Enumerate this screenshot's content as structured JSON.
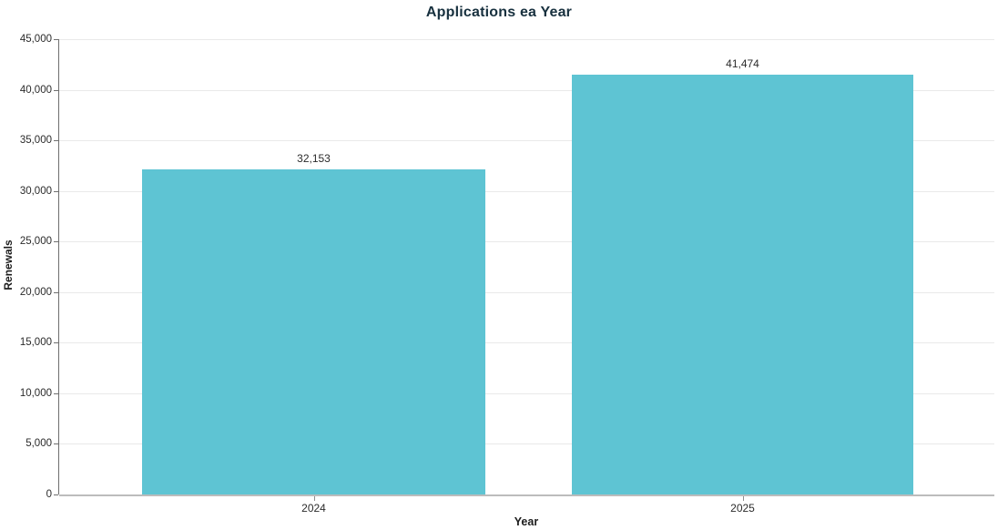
{
  "chart_data": {
    "type": "bar",
    "title": "Applications ea Year",
    "xlabel": "Year",
    "ylabel": "Renewals",
    "categories": [
      "2024",
      "2025"
    ],
    "values": [
      32153,
      41474
    ],
    "value_labels": [
      "32,153",
      "41,474"
    ],
    "ylim": [
      0,
      45000
    ],
    "ytick_values": [
      0,
      5000,
      10000,
      15000,
      20000,
      25000,
      30000,
      35000,
      40000,
      45000
    ],
    "ytick_labels": [
      "0",
      "5,000",
      "10,000",
      "15,000",
      "20,000",
      "25,000",
      "30,000",
      "35,000",
      "40,000",
      "45,000"
    ],
    "grid": "horizontal",
    "legend": "none",
    "colors": {
      "bar": "#5EC4D3",
      "title": "#17303e",
      "gridline": "#e9e9e9",
      "y_axis_line": "#6f6f6f",
      "x_axis_line": "#bcbcbc",
      "tick_text": "#2b2b2b"
    }
  }
}
